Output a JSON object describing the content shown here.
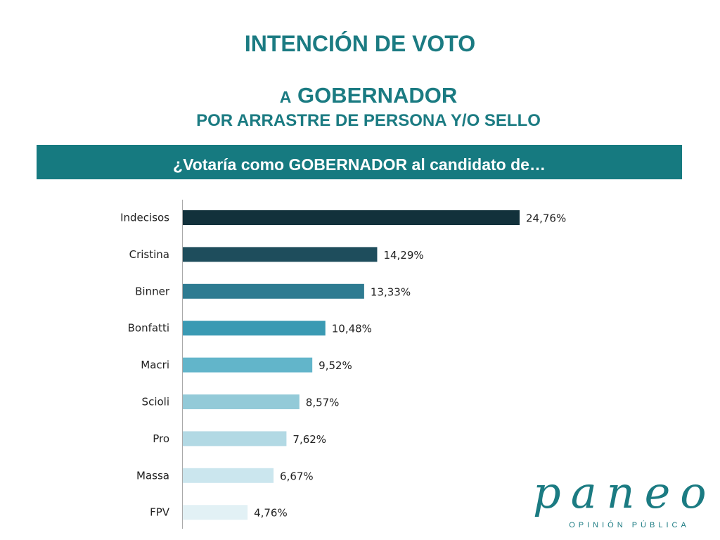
{
  "header": {
    "title": "INTENCIÓN DE VOTO",
    "subtitle_prefix": "A",
    "subtitle_main": "GOBERNADOR",
    "subtitle_line2": "POR ARRASTRE DE PERSONA Y/O SELLO",
    "question": "¿Votaría como GOBERNADOR al candidato de…"
  },
  "logo": {
    "word": "paneo",
    "tagline": "OPINIÓN PÚBLICA"
  },
  "chart_data": {
    "type": "bar",
    "orientation": "horizontal",
    "categories": [
      "Indecisos",
      "Cristina",
      "Binner",
      "Bonfatti",
      "Macri",
      "Scioli",
      "Pro",
      "Massa",
      "FPV"
    ],
    "values": [
      24.76,
      14.29,
      13.33,
      10.48,
      9.52,
      8.57,
      7.62,
      6.67,
      4.76
    ],
    "value_labels": [
      "24,76%",
      "14,29%",
      "13,33%",
      "10,48%",
      "9,52%",
      "8,57%",
      "7,62%",
      "6,67%",
      "4,76%"
    ],
    "colors": [
      "#12313b",
      "#1e4d5c",
      "#2e7b91",
      "#3a9ab3",
      "#62b5ca",
      "#93cad8",
      "#b2d9e4",
      "#cbe6ee",
      "#e2f1f5"
    ],
    "xlim": [
      0,
      28
    ],
    "grid": false,
    "legend": "none"
  }
}
